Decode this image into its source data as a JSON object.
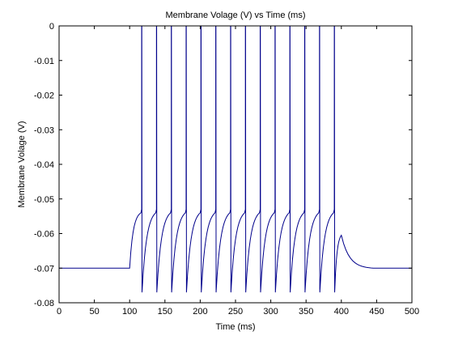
{
  "chart_data": {
    "type": "line",
    "title": "Membrane Volage (V) vs Time (ms)",
    "xlabel": "Time (ms)",
    "ylabel": "Membrane Volage (V)",
    "xlim": [
      0,
      500
    ],
    "ylim": [
      -0.08,
      0
    ],
    "xticks": [
      0,
      50,
      100,
      150,
      200,
      250,
      300,
      350,
      400,
      450,
      500
    ],
    "xtick_labels": [
      "0",
      "50",
      "100",
      "150",
      "200",
      "250",
      "300",
      "350",
      "400",
      "450",
      "500"
    ],
    "yticks": [
      0,
      -0.01,
      -0.02,
      -0.03,
      -0.04,
      -0.05,
      -0.06,
      -0.07,
      -0.08
    ],
    "ytick_labels": [
      "0",
      "-0.01",
      "-0.02",
      "-0.03",
      "-0.04",
      "-0.05",
      "-0.06",
      "-0.07",
      "-0.08"
    ],
    "grid": false,
    "line_color": "#00008b",
    "series": [
      {
        "values": {
          "resting_potential": -0.07,
          "reset_potential": -0.077,
          "spike_peak": 0,
          "spike_pre_threshold": -0.054,
          "stimulus_start": 100,
          "spike_times": [
            117,
            138,
            159,
            180,
            201,
            222,
            243,
            264,
            285,
            306,
            327,
            348,
            369,
            390
          ],
          "post_stimulus_bump": {
            "t": 400,
            "v": -0.0605
          },
          "decay_end": {
            "t": 445,
            "v": -0.07
          }
        }
      }
    ]
  }
}
